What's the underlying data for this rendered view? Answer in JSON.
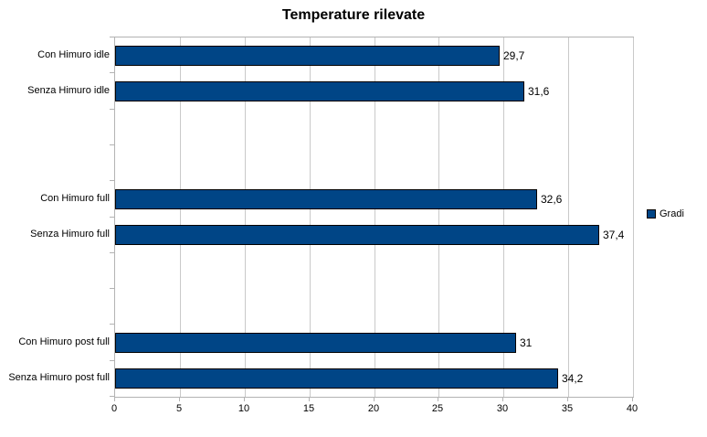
{
  "chart_data": {
    "type": "bar",
    "orientation": "horizontal",
    "title": "Temperature rilevate",
    "categories": [
      "Con Himuro idle",
      "Senza Himuro idle",
      "Con Himuro full",
      "Senza Himuro full",
      "Con Himuro post full",
      "Senza Himuro post full"
    ],
    "series": [
      {
        "name": "Gradi",
        "values": [
          29.7,
          31.6,
          32.6,
          37.4,
          31,
          34.2
        ]
      }
    ],
    "value_labels": [
      "29,7",
      "31,6",
      "32,6",
      "37,4",
      "31",
      "34,2"
    ],
    "row_slots": [
      1,
      2,
      5,
      6,
      9,
      10
    ],
    "total_slots": 10,
    "xlim": [
      0,
      40
    ],
    "x_ticks": [
      0,
      5,
      10,
      15,
      20,
      25,
      30,
      35,
      40
    ],
    "grid": "vertical-only",
    "legend": {
      "label": "Gradi",
      "position": "right-middle"
    },
    "colors": {
      "bar_fill": "#004586",
      "bar_border": "#000000",
      "gridline": "#c9c9c9",
      "axis": "#b3b3b3",
      "text": "#000000",
      "background": "#ffffff"
    }
  }
}
